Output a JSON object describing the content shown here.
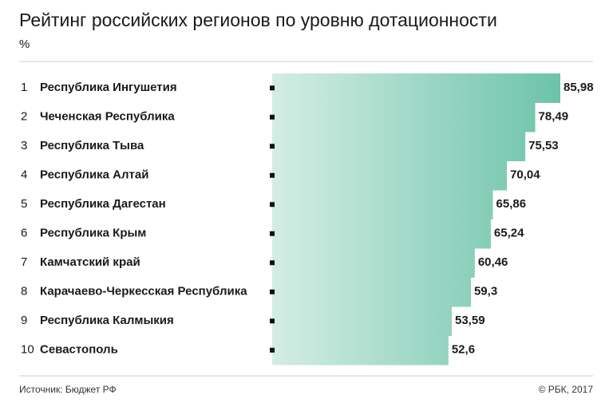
{
  "chart_data": {
    "type": "bar",
    "title": "Рейтинг российских регионов по уровню дотационности",
    "subtitle": "%",
    "ranks": [
      1,
      2,
      3,
      4,
      5,
      6,
      7,
      8,
      9,
      10
    ],
    "categories": [
      "Республика Ингушетия",
      "Чеченская Республика",
      "Республика Тыва",
      "Республика Алтай",
      "Республика Дагестан",
      "Республика Крым",
      "Камчатский край",
      "Карачаево-Черкесская Республика",
      "Республика Калмыкия",
      "Севастополь"
    ],
    "values": [
      85.98,
      78.49,
      75.53,
      70.04,
      65.86,
      65.24,
      60.46,
      59.3,
      53.59,
      52.6
    ],
    "value_labels": [
      "85,98",
      "78,49",
      "75,53",
      "70,04",
      "65,86",
      "65,24",
      "60,46",
      "59,3",
      "53,59",
      "52,6"
    ],
    "colors": [
      "#d4ede4",
      "#6cc3a9"
    ],
    "source": "Источник: Бюджет РФ",
    "credit": "© РБК, 2017"
  }
}
